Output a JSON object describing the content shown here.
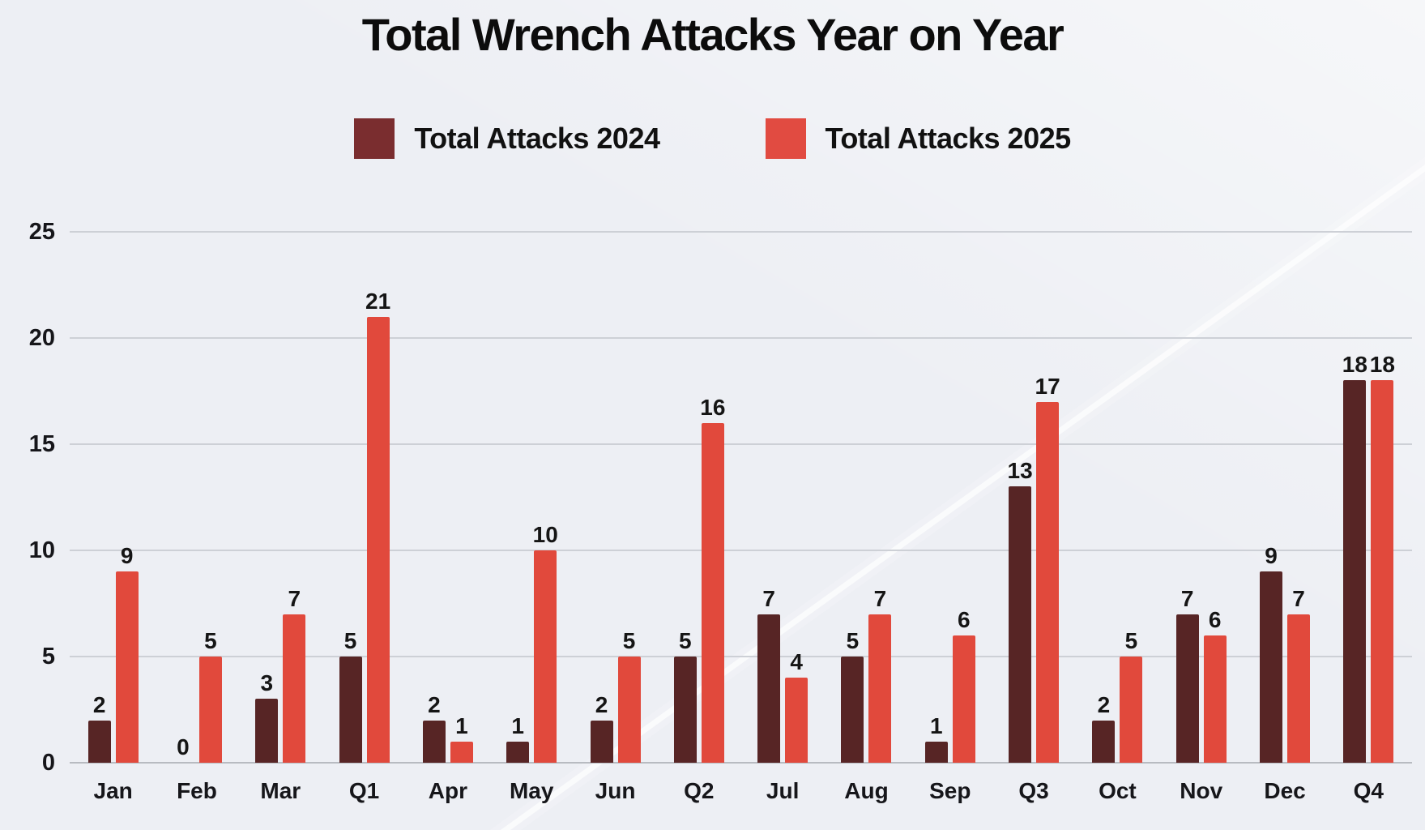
{
  "title": "Total Wrench Attacks Year on Year",
  "legend": {
    "items": [
      {
        "label": "Total Attacks 2024",
        "swatch_color": "#7a2d2f"
      },
      {
        "label": "Total Attacks 2025",
        "swatch_color": "#e14b41"
      }
    ]
  },
  "chart_data": {
    "type": "bar",
    "title": "Total Wrench Attacks Year on Year",
    "categories": [
      "Jan",
      "Feb",
      "Mar",
      "Q1",
      "Apr",
      "May",
      "Jun",
      "Q2",
      "Jul",
      "Aug",
      "Sep",
      "Q3",
      "Oct",
      "Nov",
      "Dec",
      "Q4"
    ],
    "series": [
      {
        "name": "Total Attacks 2024",
        "color": "#572525",
        "values": [
          2,
          0,
          3,
          5,
          2,
          1,
          2,
          5,
          7,
          5,
          1,
          13,
          2,
          7,
          9,
          18
        ]
      },
      {
        "name": "Total Attacks 2025",
        "color": "#e1493c",
        "values": [
          9,
          5,
          7,
          21,
          1,
          10,
          5,
          16,
          4,
          7,
          6,
          17,
          5,
          6,
          7,
          18
        ]
      }
    ],
    "xlabel": "",
    "ylabel": "",
    "ylim": [
      0,
      25
    ],
    "yticks": [
      0,
      5,
      10,
      15,
      20,
      25
    ],
    "grid": true,
    "value_labels": true,
    "legend_position": "top"
  },
  "style": {
    "background": "#edeff4",
    "gridline_color": "#cdd0d6",
    "baseline_color": "#b8bbc1",
    "text_color": "#111111"
  }
}
